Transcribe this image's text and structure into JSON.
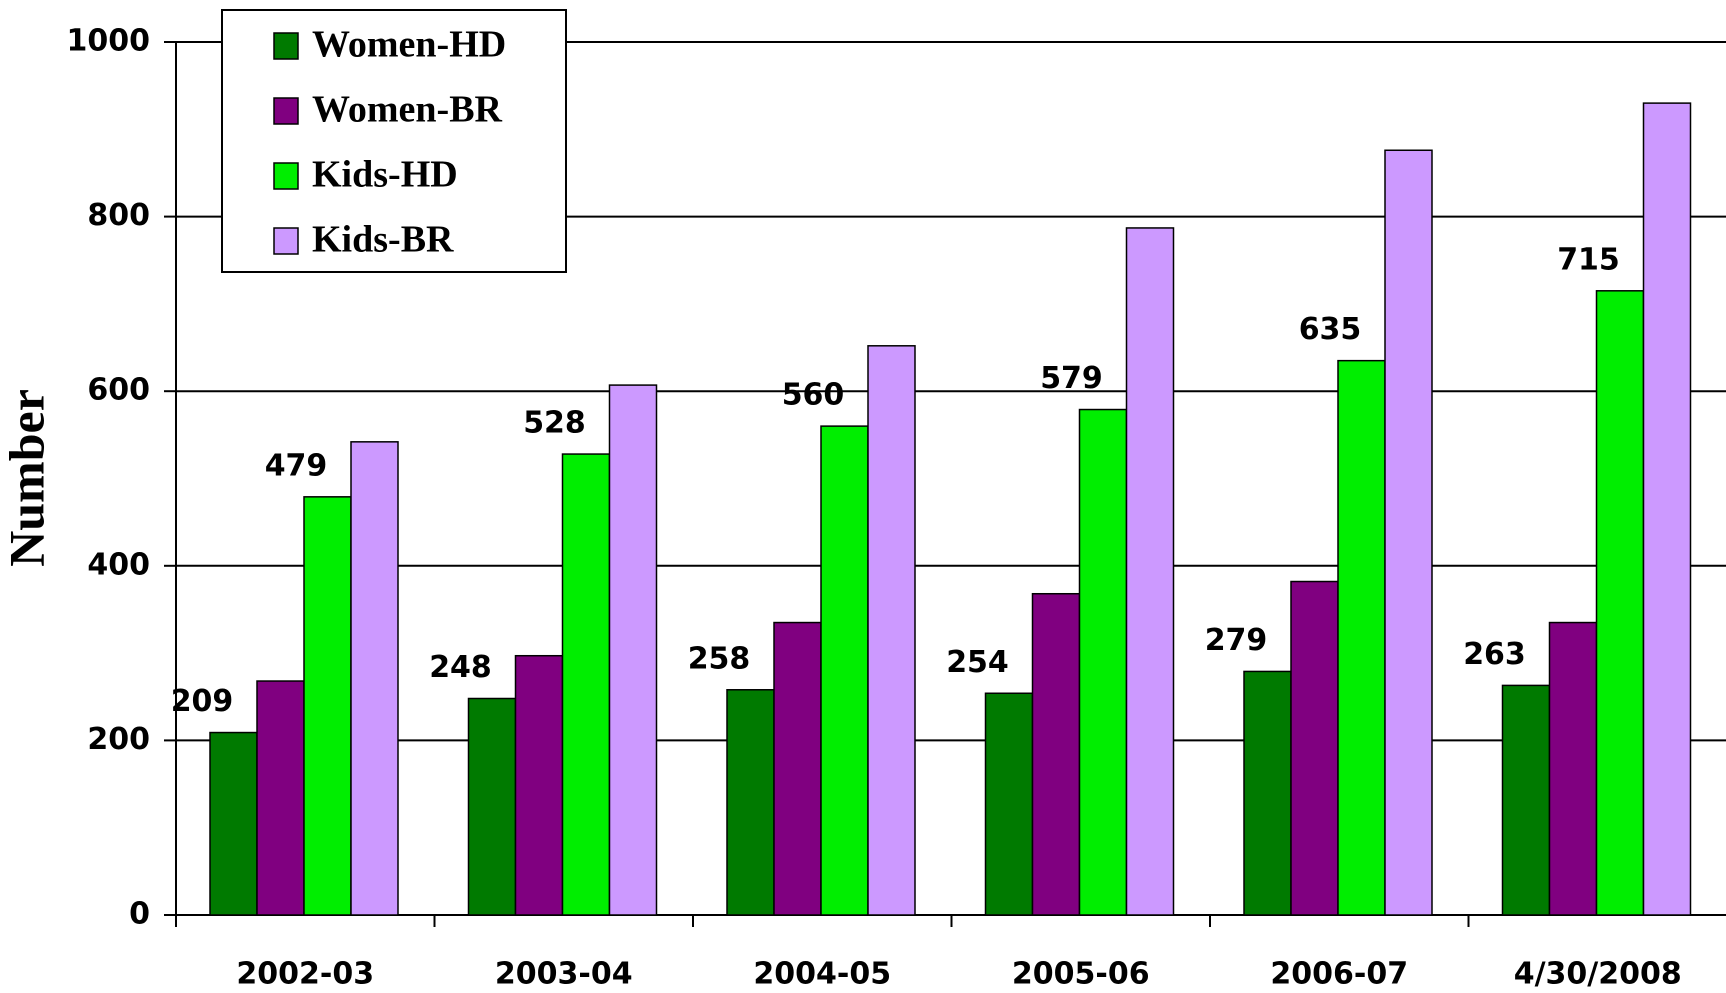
{
  "chart_data": {
    "type": "bar",
    "y_label": "Number",
    "categories": [
      "2002-03",
      "2003-04",
      "2004-05",
      "2005-06",
      "2006-07",
      "4/30/2008"
    ],
    "series": [
      {
        "name": "Women-HD",
        "color": "#007a00",
        "values": [
          209,
          248,
          258,
          254,
          279,
          263
        ],
        "show_labels": true
      },
      {
        "name": "Women-BR",
        "color": "#800080",
        "values": [
          268,
          297,
          335,
          368,
          382,
          335
        ],
        "show_labels": false
      },
      {
        "name": "Kids-HD",
        "color": "#00ee00",
        "values": [
          479,
          528,
          560,
          579,
          635,
          715
        ],
        "show_labels": true
      },
      {
        "name": "Kids-BR",
        "color": "#cc99ff",
        "values": [
          542,
          607,
          652,
          787,
          876,
          930
        ],
        "show_labels": false
      }
    ],
    "ylim": [
      0,
      1000
    ],
    "yticks": [
      0,
      200,
      400,
      600,
      800,
      1000
    ],
    "grid": true,
    "legend": "upper left"
  }
}
